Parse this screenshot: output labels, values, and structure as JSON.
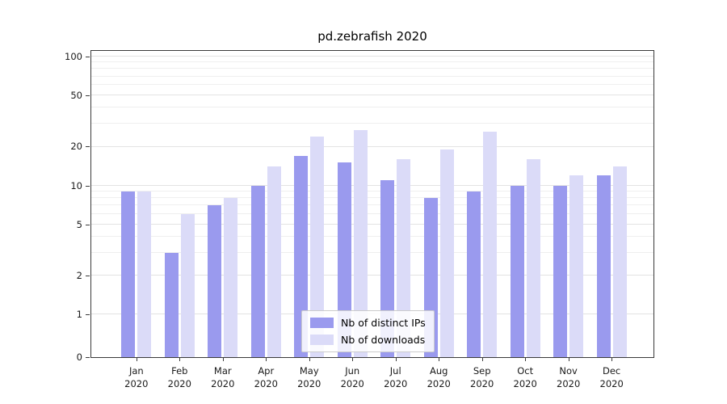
{
  "chart_data": {
    "type": "bar",
    "title": "pd.zebrafish 2020",
    "categories": [
      "Jan",
      "Feb",
      "Mar",
      "Apr",
      "May",
      "Jun",
      "Jul",
      "Aug",
      "Sep",
      "Oct",
      "Nov",
      "Dec"
    ],
    "x_year": "2020",
    "series": [
      {
        "name": "Nb of distinct IPs",
        "color": "#9a9aee",
        "values": [
          9,
          3,
          7,
          10,
          17,
          15,
          11,
          8,
          9,
          10,
          10,
          12
        ]
      },
      {
        "name": "Nb of downloads",
        "color": "#dbdbf8",
        "values": [
          9,
          6,
          8,
          14,
          24,
          27,
          16,
          19,
          26,
          16,
          12,
          14
        ]
      }
    ],
    "yticks": [
      0,
      1,
      2,
      5,
      10,
      20,
      50,
      100
    ],
    "minor_yticks": [
      3,
      4,
      6,
      7,
      8,
      9,
      30,
      40,
      60,
      70,
      80,
      90
    ],
    "yscale": "symlog",
    "ylim": [
      0,
      100
    ],
    "grid": "horizontal",
    "legend_position": "lower center"
  }
}
